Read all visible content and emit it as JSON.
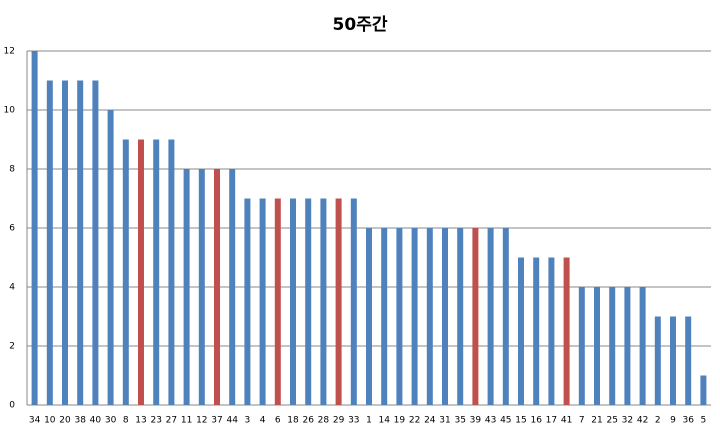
{
  "chart_data": {
    "type": "bar",
    "title": "50주간",
    "categories": [
      "34",
      "10",
      "20",
      "38",
      "40",
      "30",
      "8",
      "13",
      "23",
      "27",
      "11",
      "12",
      "37",
      "44",
      "3",
      "4",
      "6",
      "18",
      "26",
      "28",
      "29",
      "33",
      "1",
      "14",
      "19",
      "22",
      "24",
      "31",
      "35",
      "39",
      "43",
      "45",
      "15",
      "16",
      "17",
      "41",
      "7",
      "21",
      "25",
      "32",
      "42",
      "2",
      "9",
      "36",
      "5"
    ],
    "values": [
      12,
      11,
      11,
      11,
      11,
      10,
      9,
      9,
      9,
      9,
      8,
      8,
      8,
      8,
      7,
      7,
      7,
      7,
      7,
      7,
      7,
      7,
      6,
      6,
      6,
      6,
      6,
      6,
      6,
      6,
      6,
      6,
      5,
      5,
      5,
      5,
      4,
      4,
      4,
      4,
      4,
      3,
      3,
      3,
      1
    ],
    "colors": [
      "#4f81bd",
      "#4f81bd",
      "#4f81bd",
      "#4f81bd",
      "#4f81bd",
      "#4f81bd",
      "#4f81bd",
      "#c0504d",
      "#4f81bd",
      "#4f81bd",
      "#4f81bd",
      "#4f81bd",
      "#c0504d",
      "#4f81bd",
      "#4f81bd",
      "#4f81bd",
      "#c0504d",
      "#4f81bd",
      "#4f81bd",
      "#4f81bd",
      "#c0504d",
      "#4f81bd",
      "#4f81bd",
      "#4f81bd",
      "#4f81bd",
      "#4f81bd",
      "#4f81bd",
      "#4f81bd",
      "#4f81bd",
      "#c0504d",
      "#4f81bd",
      "#4f81bd",
      "#4f81bd",
      "#4f81bd",
      "#4f81bd",
      "#c0504d",
      "#4f81bd",
      "#4f81bd",
      "#4f81bd",
      "#4f81bd",
      "#4f81bd",
      "#4f81bd",
      "#4f81bd",
      "#4f81bd",
      "#4f81bd"
    ],
    "ylim": [
      0,
      12
    ],
    "yticks": [
      0,
      2,
      4,
      6,
      8,
      10,
      12
    ],
    "grid": true
  }
}
